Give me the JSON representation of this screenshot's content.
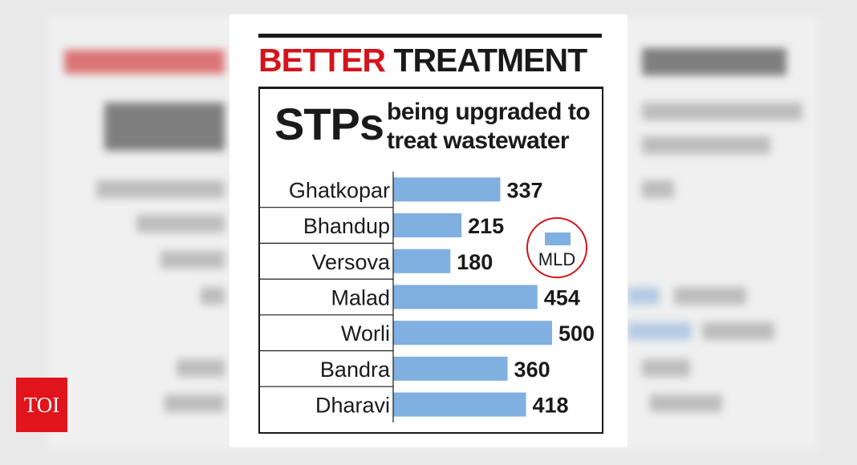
{
  "headline": {
    "part1": "BETTER",
    "part2": "TREATMENT"
  },
  "graphic": {
    "abbr": "STPs",
    "subtitle": "being upgraded to treat wastewater"
  },
  "legend": {
    "unit": "MLD"
  },
  "brand": {
    "logo": "TOI"
  },
  "colors": {
    "accent": "#d3151b",
    "bar": "#7fb0e0",
    "text": "#1a1a1a",
    "logo_bg": "#e1141b"
  },
  "chart_data": {
    "type": "bar",
    "orientation": "horizontal",
    "categories": [
      "Ghatkopar",
      "Bhandup",
      "Versova",
      "Malad",
      "Worli",
      "Bandra",
      "Dharavi"
    ],
    "values": [
      337,
      215,
      180,
      454,
      500,
      360,
      418
    ],
    "data_labels": [
      "337",
      "215",
      "180",
      "454",
      "500",
      "360",
      "418"
    ],
    "title": "BETTER TREATMENT",
    "subtitle": "STPs being upgraded to treat wastewater",
    "legend": [
      "MLD"
    ],
    "legend_position": "right",
    "xlim": [
      0,
      500
    ],
    "grid": false
  }
}
